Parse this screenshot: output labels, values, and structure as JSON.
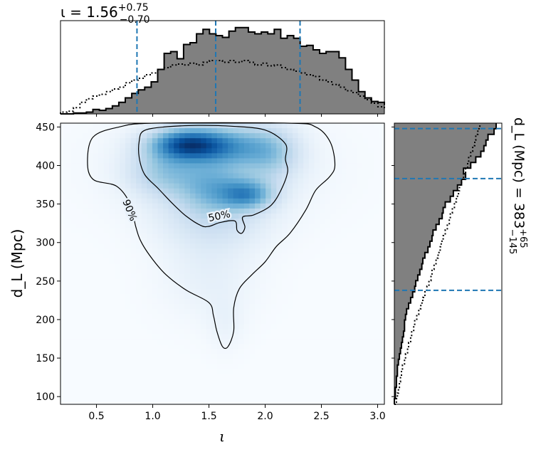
{
  "chart_data": {
    "type": "heatmap",
    "title": "",
    "xlabel": "ι",
    "ylabel": "d_L (Mpc)",
    "xlim": [
      0.18,
      3.06
    ],
    "ylim": [
      90,
      455
    ],
    "x_ticks": [
      0.5,
      1.0,
      1.5,
      2.0,
      2.5,
      3.0
    ],
    "x_tick_labels": [
      "0.5",
      "1.0",
      "1.5",
      "2.0",
      "2.5",
      "3.0"
    ],
    "y_ticks": [
      100,
      150,
      200,
      250,
      300,
      350,
      400,
      450
    ],
    "y_tick_labels": [
      "100",
      "150",
      "200",
      "250",
      "300",
      "350",
      "400",
      "450"
    ],
    "colormap": "Blues",
    "contours": [
      {
        "label": "50%",
        "level": 0.5
      },
      {
        "label": "90%",
        "level": 0.9
      }
    ],
    "density_blobs": [
      {
        "x": 1.28,
        "y": 428,
        "sx": 0.22,
        "sy": 14,
        "w": 1.0
      },
      {
        "x": 1.62,
        "y": 425,
        "sx": 0.28,
        "sy": 18,
        "w": 0.75
      },
      {
        "x": 1.85,
        "y": 362,
        "sx": 0.16,
        "sy": 13,
        "w": 0.72
      },
      {
        "x": 1.55,
        "y": 372,
        "sx": 0.22,
        "sy": 22,
        "w": 0.55
      },
      {
        "x": 1.1,
        "y": 392,
        "sx": 0.22,
        "sy": 22,
        "w": 0.45
      },
      {
        "x": 2.05,
        "y": 415,
        "sx": 0.18,
        "sy": 25,
        "w": 0.45
      },
      {
        "x": 1.55,
        "y": 330,
        "sx": 0.35,
        "sy": 28,
        "w": 0.28
      },
      {
        "x": 1.5,
        "y": 260,
        "sx": 0.3,
        "sy": 40,
        "w": 0.14
      },
      {
        "x": 1.65,
        "y": 195,
        "sx": 0.12,
        "sy": 25,
        "w": 0.09
      },
      {
        "x": 1.55,
        "y": 400,
        "sx": 0.6,
        "sy": 45,
        "w": 0.2
      }
    ],
    "contour_90": [
      [
        1.02,
        455
      ],
      [
        0.7,
        450
      ],
      [
        0.47,
        437
      ],
      [
        0.42,
        405
      ],
      [
        0.47,
        382
      ],
      [
        0.68,
        373
      ],
      [
        0.8,
        350
      ],
      [
        0.85,
        320
      ],
      [
        0.9,
        300
      ],
      [
        1.0,
        278
      ],
      [
        1.12,
        258
      ],
      [
        1.3,
        238
      ],
      [
        1.5,
        222
      ],
      [
        1.54,
        205
      ],
      [
        1.57,
        185
      ],
      [
        1.62,
        165
      ],
      [
        1.67,
        165
      ],
      [
        1.72,
        185
      ],
      [
        1.72,
        215
      ],
      [
        1.77,
        240
      ],
      [
        1.88,
        258
      ],
      [
        2.0,
        275
      ],
      [
        2.1,
        295
      ],
      [
        2.22,
        312
      ],
      [
        2.36,
        342
      ],
      [
        2.45,
        368
      ],
      [
        2.57,
        385
      ],
      [
        2.62,
        400
      ],
      [
        2.58,
        430
      ],
      [
        2.45,
        450
      ],
      [
        2.2,
        455
      ]
    ],
    "contour_50": [
      [
        0.92,
        445
      ],
      [
        1.1,
        450
      ],
      [
        1.4,
        452
      ],
      [
        1.7,
        451
      ],
      [
        2.0,
        446
      ],
      [
        2.18,
        428
      ],
      [
        2.18,
        408
      ],
      [
        2.2,
        392
      ],
      [
        2.14,
        368
      ],
      [
        2.05,
        348
      ],
      [
        1.9,
        336
      ],
      [
        1.8,
        333
      ],
      [
        1.82,
        320
      ],
      [
        1.79,
        312
      ],
      [
        1.75,
        316
      ],
      [
        1.73,
        328
      ],
      [
        1.6,
        326
      ],
      [
        1.5,
        321
      ],
      [
        1.43,
        322
      ],
      [
        1.3,
        334
      ],
      [
        1.18,
        350
      ],
      [
        1.05,
        370
      ],
      [
        0.93,
        388
      ],
      [
        0.88,
        410
      ],
      [
        0.88,
        432
      ]
    ],
    "marginal_x": {
      "xlabel": "ι",
      "summary": {
        "median": 1.56,
        "plus": 0.75,
        "minus": 0.7
      },
      "title_prefix": "ι = 1.56",
      "sup": "+0.75",
      "sub": "−0.70",
      "quantile_lines": [
        0.86,
        1.56,
        2.31
      ],
      "bin_start": 0.18,
      "bin_width": 0.0576,
      "posterior": [
        0,
        0,
        0.01,
        0.01,
        0.02,
        0.05,
        0.04,
        0.06,
        0.09,
        0.13,
        0.18,
        0.23,
        0.27,
        0.3,
        0.36,
        0.5,
        0.68,
        0.7,
        0.62,
        0.78,
        0.8,
        0.9,
        0.95,
        0.9,
        0.88,
        0.86,
        0.93,
        0.97,
        0.97,
        0.92,
        0.9,
        0.92,
        0.9,
        0.95,
        0.85,
        0.88,
        0.85,
        0.76,
        0.77,
        0.72,
        0.68,
        0.7,
        0.7,
        0.63,
        0.5,
        0.38,
        0.25,
        0.18,
        0.14,
        0.13,
        0.1
      ],
      "prior": [
        0.02,
        0.03,
        0.07,
        0.13,
        0.17,
        0.2,
        0.22,
        0.25,
        0.28,
        0.3,
        0.35,
        0.38,
        0.4,
        0.44,
        0.46,
        0.5,
        0.52,
        0.55,
        0.56,
        0.55,
        0.57,
        0.55,
        0.58,
        0.6,
        0.6,
        0.58,
        0.6,
        0.58,
        0.6,
        0.58,
        0.55,
        0.57,
        0.54,
        0.55,
        0.52,
        0.5,
        0.48,
        0.46,
        0.44,
        0.42,
        0.38,
        0.36,
        0.33,
        0.3,
        0.26,
        0.24,
        0.2,
        0.16,
        0.12,
        0.08,
        0.05
      ]
    },
    "marginal_y": {
      "ylabel_text": "d_L (Mpc) = 383",
      "summary": {
        "median": 383,
        "plus": 65,
        "minus": 145
      },
      "sup": "+65",
      "sub": "−145",
      "quantile_lines": [
        238,
        383,
        448
      ],
      "bin_start": 90,
      "bin_width": 7.3,
      "posterior": [
        0,
        0.01,
        0.01,
        0.02,
        0.02,
        0.03,
        0.03,
        0.04,
        0.05,
        0.06,
        0.07,
        0.08,
        0.09,
        0.1,
        0.1,
        0.11,
        0.12,
        0.14,
        0.16,
        0.18,
        0.2,
        0.21,
        0.23,
        0.25,
        0.27,
        0.28,
        0.3,
        0.33,
        0.35,
        0.37,
        0.38,
        0.41,
        0.44,
        0.47,
        0.48,
        0.5,
        0.55,
        0.58,
        0.62,
        0.66,
        0.7,
        0.68,
        0.75,
        0.8,
        0.85,
        0.88,
        0.9,
        0.92,
        0.98,
        1.0
      ],
      "prior": [
        0.02,
        0.03,
        0.04,
        0.05,
        0.06,
        0.07,
        0.08,
        0.1,
        0.11,
        0.13,
        0.14,
        0.16,
        0.17,
        0.19,
        0.2,
        0.22,
        0.24,
        0.26,
        0.28,
        0.3,
        0.32,
        0.34,
        0.36,
        0.37,
        0.39,
        0.41,
        0.43,
        0.45,
        0.46,
        0.48,
        0.5,
        0.52,
        0.54,
        0.55,
        0.57,
        0.59,
        0.61,
        0.63,
        0.64,
        0.66,
        0.68,
        0.7,
        0.72,
        0.73,
        0.75,
        0.77,
        0.79,
        0.8,
        0.82,
        0.84
      ]
    },
    "colors": {
      "hist_fill": "#808080",
      "hist_edge": "#000000",
      "quantile_line": "#1f77b4",
      "contour": "#000000"
    }
  }
}
